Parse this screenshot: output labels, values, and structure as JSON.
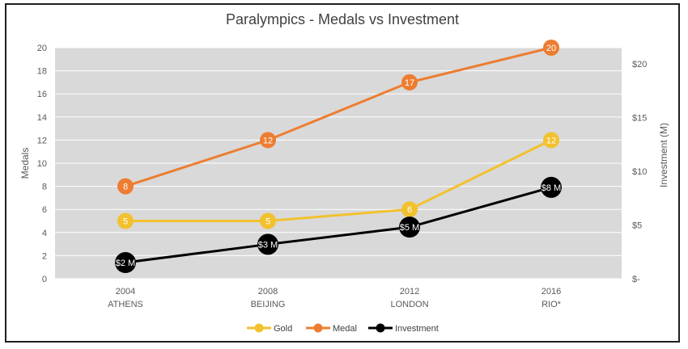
{
  "chart_data": {
    "type": "line",
    "title": "Paralympics - Medals vs Investment",
    "xlabel": "",
    "ylabel": "Medals",
    "y2label": "Investment (M)",
    "categories": [
      {
        "year": "2004",
        "city": "ATHENS"
      },
      {
        "year": "2008",
        "city": "BEIJING"
      },
      {
        "year": "2012",
        "city": "LONDON"
      },
      {
        "year": "2016",
        "city": "RIO*"
      }
    ],
    "ylim": [
      0,
      20
    ],
    "y_ticks": [
      "0",
      "2",
      "4",
      "6",
      "8",
      "10",
      "12",
      "14",
      "16",
      "18",
      "20"
    ],
    "y2lim": [
      0,
      21.5
    ],
    "y2_ticks": [
      "$-",
      "$5",
      "$10",
      "$15",
      "$20"
    ],
    "grid": true,
    "legend_position": "bottom",
    "series": [
      {
        "name": "Gold",
        "axis": "left",
        "color": "#F2C12E",
        "values": [
          5,
          5,
          6,
          12
        ],
        "labels": [
          "5",
          "5",
          "6",
          "12"
        ]
      },
      {
        "name": "Medal",
        "axis": "left",
        "color": "#ED7D31",
        "values": [
          8,
          12,
          17,
          20
        ],
        "labels": [
          "8",
          "12",
          "17",
          "20"
        ]
      },
      {
        "name": "Investment",
        "axis": "right",
        "color": "#000000",
        "values": [
          1.5,
          3.2,
          4.8,
          8.5
        ],
        "labels": [
          "$2 M",
          "$3 M",
          "$5 M",
          "$8 M"
        ]
      }
    ]
  }
}
